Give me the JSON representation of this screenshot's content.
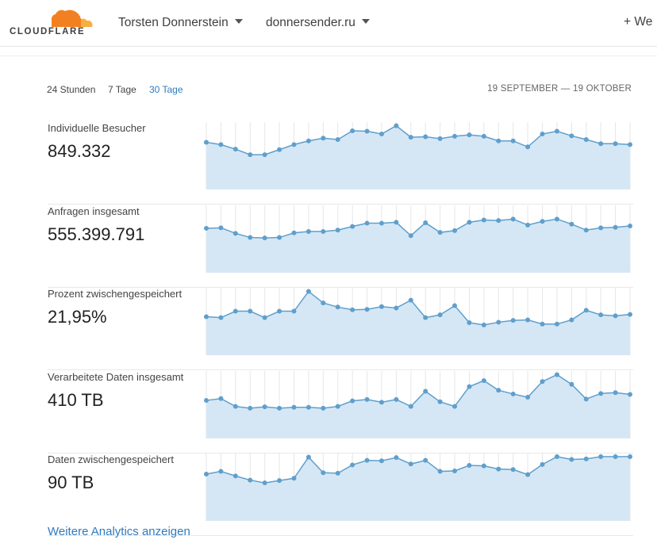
{
  "header": {
    "logo_text": "CLOUDFLARE",
    "account_label": "Torsten Donnerstein",
    "site_label": "donnersender.ru",
    "add_site_label": "+ We"
  },
  "filters": {
    "options": [
      "24 Stunden",
      "7 Tage",
      "30 Tage"
    ],
    "active": "30 Tage",
    "date_range": "19 SEPTEMBER — 19 OKTOBER"
  },
  "metrics": [
    {
      "label": "Individuelle Besucher",
      "value": "849.332",
      "series": [
        0.63,
        0.58,
        0.48,
        0.36,
        0.36,
        0.47,
        0.58,
        0.66,
        0.72,
        0.69,
        0.88,
        0.87,
        0.81,
        0.99,
        0.74,
        0.75,
        0.71,
        0.76,
        0.79,
        0.76,
        0.66,
        0.66,
        0.53,
        0.81,
        0.87,
        0.77,
        0.69,
        0.6,
        0.6,
        0.58
      ]
    },
    {
      "label": "Anfragen insgesamt",
      "value": "555.399.791",
      "series": [
        0.57,
        0.58,
        0.46,
        0.37,
        0.36,
        0.37,
        0.47,
        0.5,
        0.5,
        0.53,
        0.61,
        0.68,
        0.68,
        0.7,
        0.41,
        0.69,
        0.48,
        0.52,
        0.7,
        0.75,
        0.74,
        0.77,
        0.64,
        0.72,
        0.77,
        0.66,
        0.53,
        0.58,
        0.59,
        0.62
      ]
    },
    {
      "label": "Prozent zwischengespeichert",
      "value": "21,95%",
      "series": [
        0.44,
        0.42,
        0.56,
        0.56,
        0.42,
        0.56,
        0.56,
        0.99,
        0.74,
        0.65,
        0.59,
        0.6,
        0.66,
        0.63,
        0.8,
        0.42,
        0.48,
        0.68,
        0.31,
        0.26,
        0.32,
        0.36,
        0.37,
        0.28,
        0.28,
        0.37,
        0.58,
        0.48,
        0.46,
        0.49
      ]
    },
    {
      "label": "Verarbeitete Daten insgesamt",
      "value": "410 TB",
      "series": [
        0.43,
        0.47,
        0.3,
        0.26,
        0.29,
        0.26,
        0.28,
        0.28,
        0.26,
        0.3,
        0.42,
        0.45,
        0.39,
        0.45,
        0.3,
        0.63,
        0.4,
        0.3,
        0.73,
        0.86,
        0.65,
        0.57,
        0.5,
        0.84,
        0.99,
        0.78,
        0.46,
        0.58,
        0.6,
        0.56
      ]
    },
    {
      "label": "Daten zwischengespeichert",
      "value": "90 TB",
      "series": [
        0.62,
        0.68,
        0.58,
        0.49,
        0.43,
        0.48,
        0.53,
        0.99,
        0.65,
        0.64,
        0.82,
        0.92,
        0.91,
        0.98,
        0.84,
        0.92,
        0.68,
        0.69,
        0.81,
        0.8,
        0.73,
        0.72,
        0.61,
        0.83,
        1.0,
        0.94,
        0.95,
        1.0,
        1.0,
        1.0
      ]
    }
  ],
  "more_link": "Weitere Analytics anzeigen",
  "colors": {
    "accent": "#2f7bbf",
    "spark_line": "#5f9fcc",
    "spark_fill": "#d5e7f5",
    "logo_orange": "#f38020",
    "logo_orange_light": "#faae40"
  }
}
